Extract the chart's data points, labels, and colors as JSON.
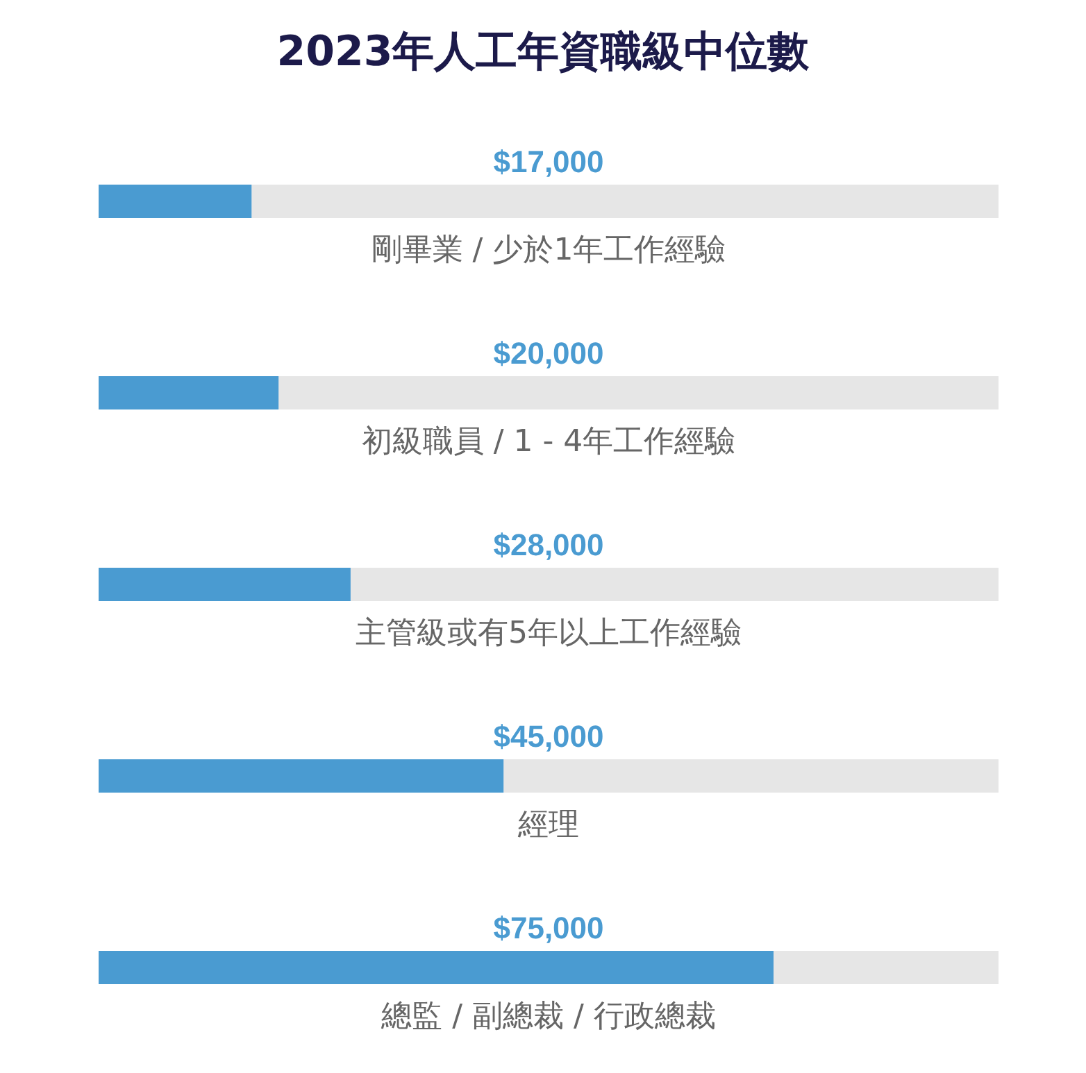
{
  "chart_data": {
    "type": "bar",
    "orientation": "horizontal",
    "title": "2023年人工年資職級中位數",
    "categories": [
      "剛畢業 / 少於1年工作經驗",
      "初級職員 / 1 - 4年工作經驗",
      "主管級或有5年以上工作經驗",
      "經理",
      "總監 / 副總裁 / 行政總裁"
    ],
    "values": [
      17000,
      20000,
      28000,
      45000,
      75000
    ],
    "value_labels": [
      "$17,000",
      "$20,000",
      "$28,000",
      "$45,000",
      "$75,000"
    ],
    "color": "#4a9bd1",
    "xlim": [
      0,
      100000
    ],
    "tick_labels": false,
    "grid": false,
    "legend": false
  }
}
